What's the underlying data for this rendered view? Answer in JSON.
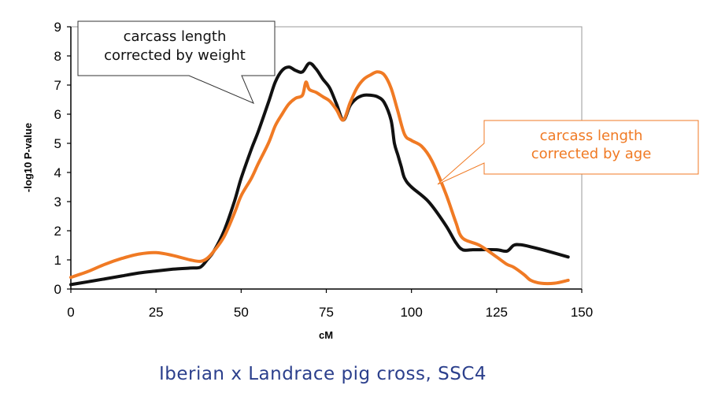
{
  "caption": "Iberian x Landrace pig cross, SSC4",
  "colors": {
    "black_series": "#111111",
    "orange_series": "#f07a24",
    "caption": "#2b3f8c"
  },
  "chart_data": {
    "type": "line",
    "title": "",
    "xlabel": "cM",
    "ylabel": "-log10 P-value",
    "xlim": [
      0,
      150
    ],
    "ylim": [
      0,
      9
    ],
    "xticks": [
      0,
      25,
      50,
      75,
      100,
      125,
      150
    ],
    "yticks": [
      0,
      1,
      2,
      3,
      4,
      5,
      6,
      7,
      8,
      9
    ],
    "grid": false,
    "legend": "callouts",
    "series": [
      {
        "name": "carcass length corrected by weight",
        "color": "#111111",
        "x": [
          0,
          5,
          10,
          15,
          20,
          25,
          30,
          35,
          38,
          40,
          42,
          45,
          48,
          50,
          53,
          55,
          58,
          60,
          62,
          64,
          66,
          68,
          70,
          72,
          74,
          76,
          78,
          80,
          82,
          84,
          86,
          88,
          90,
          92,
          94,
          95,
          96,
          97,
          98,
          100,
          105,
          110,
          113,
          115,
          118,
          120,
          125,
          128,
          130,
          132,
          135,
          140,
          146
        ],
        "y": [
          0.15,
          0.25,
          0.35,
          0.45,
          0.55,
          0.62,
          0.68,
          0.72,
          0.75,
          1.0,
          1.3,
          2.0,
          3.0,
          3.8,
          4.8,
          5.4,
          6.4,
          7.1,
          7.5,
          7.62,
          7.5,
          7.45,
          7.75,
          7.55,
          7.2,
          6.9,
          6.35,
          5.8,
          6.3,
          6.55,
          6.65,
          6.65,
          6.6,
          6.4,
          5.8,
          5.0,
          4.6,
          4.2,
          3.8,
          3.5,
          3.0,
          2.2,
          1.6,
          1.35,
          1.35,
          1.35,
          1.35,
          1.3,
          1.5,
          1.52,
          1.45,
          1.3,
          1.1
        ]
      },
      {
        "name": "carcass length corrected by age",
        "color": "#f07a24",
        "x": [
          0,
          5,
          10,
          15,
          20,
          25,
          30,
          35,
          38,
          40,
          42,
          45,
          48,
          50,
          53,
          55,
          58,
          60,
          62,
          64,
          66,
          68,
          69,
          70,
          72,
          74,
          76,
          78,
          80,
          82,
          84,
          86,
          88,
          90,
          92,
          94,
          96,
          98,
          100,
          103,
          106,
          110,
          113,
          115,
          120,
          125,
          128,
          130,
          133,
          135,
          138,
          142,
          146
        ],
        "y": [
          0.4,
          0.6,
          0.85,
          1.05,
          1.2,
          1.25,
          1.15,
          1.0,
          0.95,
          1.05,
          1.3,
          1.8,
          2.6,
          3.2,
          3.8,
          4.3,
          5.0,
          5.6,
          6.0,
          6.35,
          6.55,
          6.65,
          7.1,
          6.85,
          6.75,
          6.6,
          6.45,
          6.15,
          5.8,
          6.4,
          6.9,
          7.2,
          7.35,
          7.45,
          7.35,
          6.9,
          6.1,
          5.3,
          5.1,
          4.9,
          4.4,
          3.3,
          2.3,
          1.75,
          1.5,
          1.1,
          0.85,
          0.75,
          0.5,
          0.3,
          0.2,
          0.2,
          0.3
        ]
      }
    ],
    "annotations": [
      {
        "id": "black",
        "lines": [
          "carcass length",
          "corrected by weight"
        ],
        "color": "#111111"
      },
      {
        "id": "orange",
        "lines": [
          "carcass length",
          "corrected by age"
        ],
        "color": "#f07a24"
      }
    ]
  }
}
